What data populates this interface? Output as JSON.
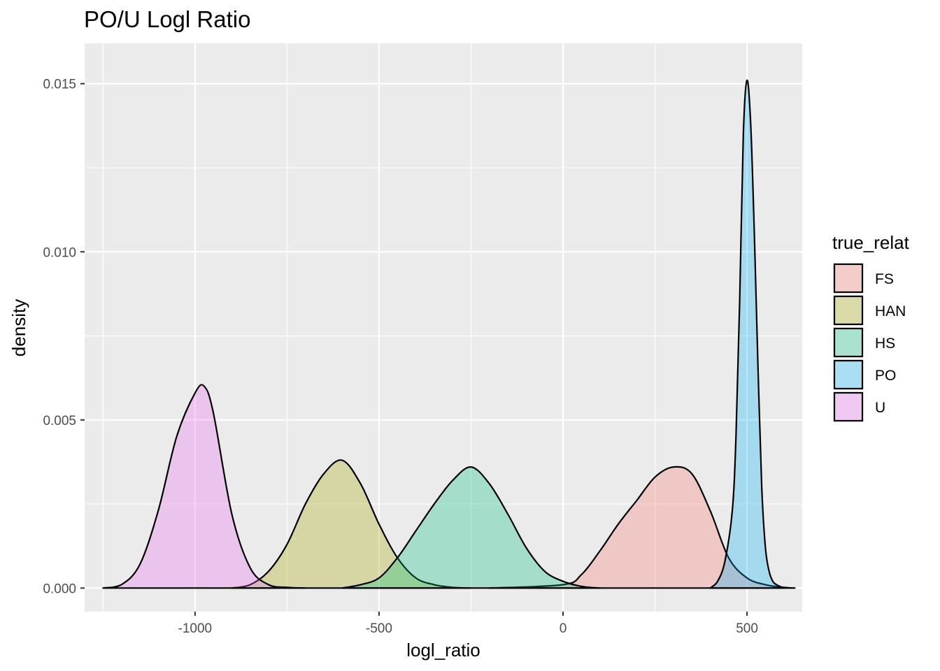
{
  "chart_data": {
    "type": "area",
    "subtype": "density",
    "title": "PO/U Logl Ratio",
    "xlabel": "logl_ratio",
    "ylabel": "density",
    "xlim": [
      -1300,
      650
    ],
    "ylim": [
      -0.0007,
      0.0162
    ],
    "xticks": [
      -1000,
      -500,
      0,
      500
    ],
    "xtick_labels": [
      "-1000",
      "-500",
      "0",
      "500"
    ],
    "yticks": [
      0.0,
      0.005,
      0.01,
      0.015
    ],
    "ytick_labels": [
      "0.000",
      "0.005",
      "0.010",
      "0.015"
    ],
    "grid": true,
    "legend": {
      "title": "true_relat",
      "position": "right"
    },
    "series": [
      {
        "name": "FS",
        "color": "#F8766D",
        "x": [
          -200,
          0,
          50,
          100,
          150,
          200,
          250,
          300,
          350,
          400,
          450,
          500,
          550,
          600,
          630
        ],
        "y": [
          0.0,
          0.0001,
          0.0004,
          0.0011,
          0.0019,
          0.0026,
          0.0033,
          0.0036,
          0.0034,
          0.0023,
          0.0009,
          0.0003,
          0.0001,
          2e-05,
          0.0
        ]
      },
      {
        "name": "HAN",
        "color": "#A3A500",
        "x": [
          -900,
          -850,
          -800,
          -750,
          -700,
          -650,
          -600,
          -550,
          -500,
          -450,
          -400,
          -350,
          -300,
          -250
        ],
        "y": [
          0.0,
          0.0001,
          0.0005,
          0.0013,
          0.0025,
          0.0034,
          0.0038,
          0.0031,
          0.0019,
          0.0009,
          0.0003,
          0.0001,
          2e-05,
          0.0
        ]
      },
      {
        "name": "HS",
        "color": "#00BF7D",
        "x": [
          -600,
          -550,
          -500,
          -450,
          -400,
          -350,
          -300,
          -250,
          -200,
          -150,
          -100,
          -50,
          0,
          50,
          100
        ],
        "y": [
          0.0,
          0.0001,
          0.0003,
          0.0009,
          0.0017,
          0.0025,
          0.0032,
          0.0036,
          0.0031,
          0.0022,
          0.0012,
          0.0005,
          0.0002,
          5e-05,
          0.0
        ]
      },
      {
        "name": "PO",
        "color": "#00B0F6",
        "x": [
          400,
          420,
          440,
          460,
          470,
          480,
          490,
          500,
          510,
          520,
          530,
          540,
          550,
          560,
          570,
          580,
          600
        ],
        "y": [
          0.0,
          0.0002,
          0.0008,
          0.0023,
          0.0045,
          0.0085,
          0.0135,
          0.0151,
          0.0138,
          0.0105,
          0.0065,
          0.003,
          0.0012,
          0.0005,
          0.0002,
          0.0001,
          0.0
        ]
      },
      {
        "name": "U",
        "color": "#E76BF3",
        "x": [
          -1250,
          -1200,
          -1150,
          -1100,
          -1050,
          -1000,
          -975,
          -950,
          -900,
          -850,
          -800,
          -750,
          -700
        ],
        "y": [
          0.0,
          0.0001,
          0.0007,
          0.0023,
          0.0045,
          0.0058,
          0.006,
          0.0052,
          0.0022,
          0.0006,
          0.0001,
          2e-05,
          0.0
        ]
      }
    ]
  }
}
